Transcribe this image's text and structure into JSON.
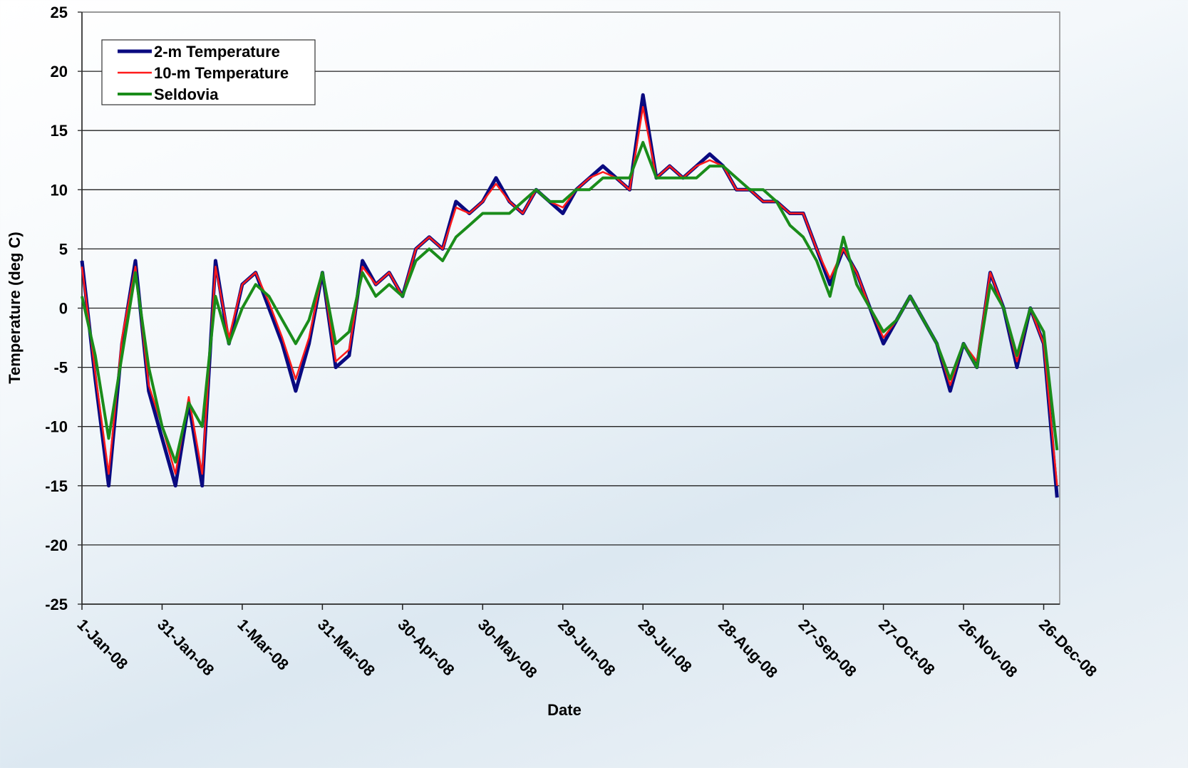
{
  "chart_data": {
    "type": "line",
    "y_label": "Temperature (deg C)",
    "x_label": "Date",
    "x": [
      "2008-01-01",
      "2008-01-06",
      "2008-01-11",
      "2008-01-16",
      "2008-01-21",
      "2008-01-26",
      "2008-01-31",
      "2008-02-05",
      "2008-02-10",
      "2008-02-15",
      "2008-02-20",
      "2008-02-25",
      "2008-03-01",
      "2008-03-06",
      "2008-03-11",
      "2008-03-16",
      "2008-03-21",
      "2008-03-26",
      "2008-03-31",
      "2008-04-05",
      "2008-04-10",
      "2008-04-15",
      "2008-04-20",
      "2008-04-25",
      "2008-04-30",
      "2008-05-05",
      "2008-05-10",
      "2008-05-15",
      "2008-05-20",
      "2008-05-25",
      "2008-05-30",
      "2008-06-04",
      "2008-06-09",
      "2008-06-14",
      "2008-06-19",
      "2008-06-24",
      "2008-06-29",
      "2008-07-04",
      "2008-07-09",
      "2008-07-14",
      "2008-07-19",
      "2008-07-24",
      "2008-07-29",
      "2008-08-03",
      "2008-08-08",
      "2008-08-13",
      "2008-08-18",
      "2008-08-23",
      "2008-08-28",
      "2008-09-02",
      "2008-09-07",
      "2008-09-12",
      "2008-09-17",
      "2008-09-22",
      "2008-09-27",
      "2008-10-02",
      "2008-10-07",
      "2008-10-12",
      "2008-10-17",
      "2008-10-22",
      "2008-10-27",
      "2008-11-01",
      "2008-11-06",
      "2008-11-11",
      "2008-11-16",
      "2008-11-21",
      "2008-11-26",
      "2008-12-01",
      "2008-12-06",
      "2008-12-11",
      "2008-12-16",
      "2008-12-21",
      "2008-12-26",
      "2008-12-31"
    ],
    "series": [
      {
        "name": "2-m Temperature",
        "color": "#0a0a80",
        "width": 5,
        "values": [
          4,
          -6,
          -15,
          -3,
          4,
          -7,
          -11,
          -15,
          -8,
          -15,
          4,
          -3,
          2,
          3,
          0,
          -3,
          -7,
          -3,
          3,
          -5,
          -4,
          4,
          2,
          3,
          1,
          5,
          6,
          5,
          9,
          8,
          9,
          11,
          9,
          8,
          10,
          9,
          8,
          10,
          11,
          12,
          11,
          10,
          18,
          11,
          12,
          11,
          12,
          13,
          12,
          10,
          10,
          9,
          9,
          8,
          8,
          5,
          2,
          5,
          3,
          0,
          -3,
          -1,
          1,
          -1,
          -3,
          -7,
          -3,
          -5,
          3,
          0,
          -5,
          0,
          -3,
          -16
        ]
      },
      {
        "name": "10-m Temperature",
        "color": "#ff1a1a",
        "width": 2.5,
        "values": [
          3.5,
          -5.5,
          -14,
          -2.5,
          3.5,
          -6.5,
          -10,
          -14,
          -7.5,
          -14,
          3.5,
          -2.5,
          2,
          3,
          0.5,
          -2.5,
          -6,
          -2.5,
          3,
          -4.5,
          -3.5,
          3.5,
          2,
          3,
          1,
          5,
          6,
          5,
          8.5,
          8,
          9,
          10.5,
          9,
          8,
          10,
          9,
          8.5,
          10,
          11,
          11.5,
          11,
          10,
          17,
          11,
          12,
          11,
          12,
          12.5,
          12,
          10,
          10,
          9,
          9,
          8,
          8,
          5,
          2.5,
          5,
          3,
          0,
          -2.5,
          -1,
          1,
          -1,
          -3,
          -6.5,
          -3,
          -4.5,
          3,
          0,
          -4.5,
          0,
          -3,
          -15
        ]
      },
      {
        "name": "Seldovia",
        "color": "#1a8c1a",
        "width": 4,
        "values": [
          1,
          -4,
          -11,
          -4,
          3,
          -5,
          -10,
          -13,
          -8,
          -10,
          1,
          -3,
          0,
          2,
          1,
          -1,
          -3,
          -1,
          3,
          -3,
          -2,
          3,
          1,
          2,
          1,
          4,
          5,
          4,
          6,
          7,
          8,
          8,
          8,
          9,
          10,
          9,
          9,
          10,
          10,
          11,
          11,
          11,
          14,
          11,
          11,
          11,
          11,
          12,
          12,
          11,
          10,
          10,
          9,
          7,
          6,
          4,
          1,
          6,
          2,
          0,
          -2,
          -1,
          1,
          -1,
          -3,
          -6,
          -3,
          -5,
          2,
          0,
          -4,
          0,
          -2,
          -12
        ]
      }
    ],
    "xlim": [
      "2008-01-01",
      "2009-01-01"
    ],
    "xticks": [
      {
        "value": "2008-01-01",
        "label": "1-Jan-08"
      },
      {
        "value": "2008-01-31",
        "label": "31-Jan-08"
      },
      {
        "value": "2008-03-01",
        "label": "1-Mar-08"
      },
      {
        "value": "2008-03-31",
        "label": "31-Mar-08"
      },
      {
        "value": "2008-04-30",
        "label": "30-Apr-08"
      },
      {
        "value": "2008-05-30",
        "label": "30-May-08"
      },
      {
        "value": "2008-06-29",
        "label": "29-Jun-08"
      },
      {
        "value": "2008-07-29",
        "label": "29-Jul-08"
      },
      {
        "value": "2008-08-28",
        "label": "28-Aug-08"
      },
      {
        "value": "2008-09-27",
        "label": "27-Sep-08"
      },
      {
        "value": "2008-10-27",
        "label": "27-Oct-08"
      },
      {
        "value": "2008-11-26",
        "label": "26-Nov-08"
      },
      {
        "value": "2008-12-26",
        "label": "26-Dec-08"
      }
    ],
    "ylim": [
      -25,
      25
    ],
    "yticks": [
      -25,
      -20,
      -15,
      -10,
      -5,
      0,
      5,
      10,
      15,
      20,
      25
    ],
    "grid": true,
    "legend": "top-left"
  }
}
